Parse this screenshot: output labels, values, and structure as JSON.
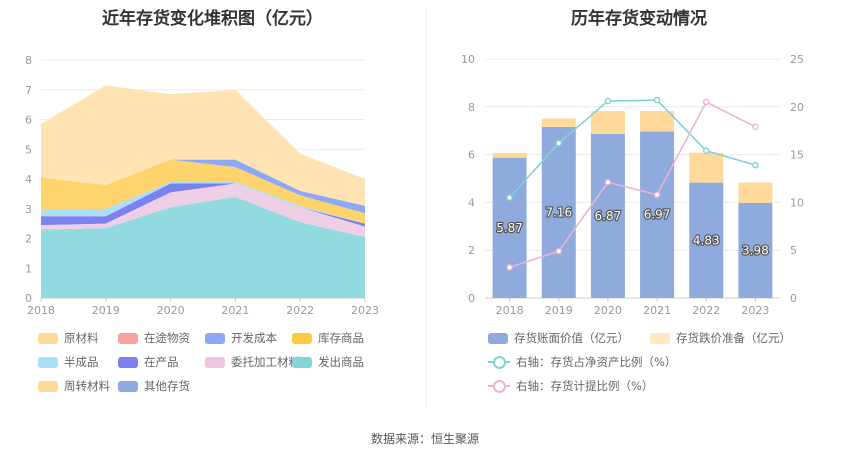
{
  "source_text": "数据来源：恒生聚源",
  "chart_data": [
    {
      "type": "area",
      "stacked": true,
      "title": "近年存货变化堆积图（亿元）",
      "categories": [
        "2018",
        "2019",
        "2020",
        "2021",
        "2022",
        "2023"
      ],
      "y_ticks": [
        "0",
        "1",
        "2",
        "3",
        "4",
        "5",
        "6",
        "7",
        "8"
      ],
      "ylim": [
        0,
        8
      ],
      "legend_position": "bottom",
      "series": [
        {
          "name": "其他存货",
          "color": "#8faadc",
          "values": [
            0,
            0,
            0,
            0,
            0,
            0
          ]
        },
        {
          "name": "发出商品",
          "color": "#91dbe0",
          "values": [
            2.3,
            2.35,
            3.05,
            3.4,
            2.55,
            2.05
          ]
        },
        {
          "name": "委托加工材料",
          "color": "#eecfe6",
          "values": [
            0.15,
            0.15,
            0.5,
            0.45,
            0.5,
            0.35
          ]
        },
        {
          "name": "在产品",
          "color": "#7b82ee",
          "values": [
            0.3,
            0.25,
            0.3,
            0,
            0,
            0.1
          ]
        },
        {
          "name": "半成品",
          "color": "#acdff7",
          "values": [
            0.2,
            0.25,
            0.05,
            0.05,
            0.05,
            0
          ]
        },
        {
          "name": "库存商品",
          "color": "#ffd36b",
          "values": [
            1.1,
            0.8,
            0.75,
            0.5,
            0.35,
            0.35
          ]
        },
        {
          "name": "开发成本",
          "color": "#8da8f8",
          "values": [
            0,
            0,
            0,
            0.25,
            0.15,
            0.25
          ]
        },
        {
          "name": "在途物资",
          "color": "#f3a59d",
          "values": [
            0,
            0,
            0,
            0,
            0,
            0
          ]
        },
        {
          "name": "周转材料",
          "color": "#ffd999",
          "values": [
            0,
            0,
            0,
            0,
            0,
            0
          ]
        },
        {
          "name": "原材料",
          "color": "#ffe3b3",
          "values": [
            1.8,
            3.35,
            2.2,
            2.35,
            1.25,
            0.9
          ]
        }
      ],
      "legend": [
        {
          "name": "原材料",
          "color": "#ffd999"
        },
        {
          "name": "在途物资",
          "color": "#f3a59d"
        },
        {
          "name": "开发成本",
          "color": "#8da8f8"
        },
        {
          "name": "库存商品",
          "color": "#ffc940"
        },
        {
          "name": "半成品",
          "color": "#acdff7"
        },
        {
          "name": "在产品",
          "color": "#7b82ee"
        },
        {
          "name": "委托加工材料",
          "color": "#eec4e2"
        },
        {
          "name": "发出商品",
          "color": "#82d6da"
        },
        {
          "name": "周转材料",
          "color": "#ffd999"
        },
        {
          "name": "其他存货",
          "color": "#8faadc"
        }
      ]
    },
    {
      "type": "bar",
      "stacked": true,
      "title": "历年存货变动情况",
      "categories": [
        "2018",
        "2019",
        "2020",
        "2021",
        "2022",
        "2023"
      ],
      "y_ticks": [
        "0",
        "2",
        "4",
        "6",
        "8",
        "10"
      ],
      "ylim": [
        0,
        10
      ],
      "y2_ticks": [
        "0",
        "5",
        "10",
        "15",
        "20",
        "25"
      ],
      "y2lim": [
        0,
        25
      ],
      "legend_position": "bottom",
      "series": [
        {
          "name": "存货账面价值（亿元）",
          "color": "#8faadc",
          "values": [
            5.87,
            7.16,
            6.87,
            6.97,
            4.83,
            3.98
          ],
          "labels": [
            "5.87",
            "7.16",
            "6.87",
            "6.97",
            "4.83",
            "3.98"
          ]
        },
        {
          "name": "存货跌价准备（亿元）",
          "color": "#ffd999",
          "values": [
            0.2,
            0.35,
            0.95,
            0.85,
            1.25,
            0.85
          ]
        }
      ],
      "lines": [
        {
          "name": "右轴：存货占净资产比例（%）",
          "color": "#7fd3d6",
          "axis": "right",
          "values": [
            10.5,
            16.2,
            20.6,
            20.7,
            15.4,
            13.9
          ]
        },
        {
          "name": "右轴：存货计提比例（%）",
          "color": "#e9b3d6",
          "axis": "right",
          "values": [
            3.2,
            4.9,
            12.1,
            10.8,
            20.5,
            17.9
          ]
        }
      ],
      "legend": [
        {
          "name": "存货账面价值（亿元）",
          "color": "#8faadc",
          "kind": "bar"
        },
        {
          "name": "存货跌价准备（亿元）",
          "color": "#ffe7c2",
          "kind": "bar"
        },
        {
          "name": "右轴：存货占净资产比例（%）",
          "color": "#7fd3d6",
          "kind": "line"
        },
        {
          "name": "右轴：存货计提比例（%）",
          "color": "#e9b3d6",
          "kind": "line"
        }
      ]
    }
  ]
}
